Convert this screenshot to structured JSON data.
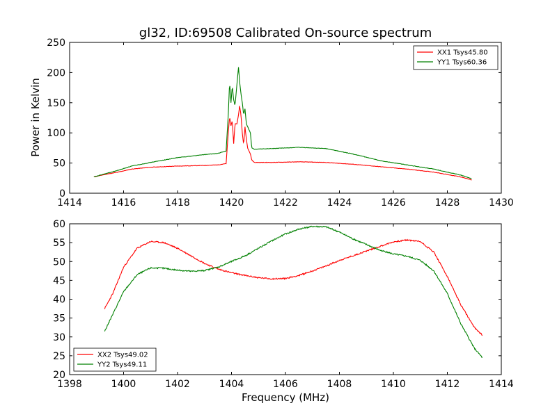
{
  "figure": {
    "title": "gl32, ID:69508 Calibrated On-source spectrum",
    "ylabel": "Power in Kelvin",
    "xlabel": "Frequency (MHz)"
  },
  "colors": {
    "red": "#ff0000",
    "green": "#008000"
  },
  "chart_data": [
    {
      "type": "line",
      "xlim": [
        1414,
        1430
      ],
      "ylim": [
        0,
        250
      ],
      "xticks": [
        1414,
        1416,
        1418,
        1420,
        1422,
        1424,
        1426,
        1428,
        1430
      ],
      "yticks": [
        0,
        50,
        100,
        150,
        200,
        250
      ],
      "legend": "top-right",
      "series": [
        {
          "name": "XX1 Tsys45.80",
          "color": "#ff0000",
          "x": [
            1414.9,
            1415.3,
            1415.8,
            1416.3,
            1417,
            1418,
            1419,
            1419.5,
            1419.8,
            1419.88,
            1419.93,
            1419.98,
            1420.03,
            1420.08,
            1420.13,
            1420.2,
            1420.26,
            1420.3,
            1420.35,
            1420.4,
            1420.45,
            1420.5,
            1420.55,
            1420.6,
            1420.65,
            1420.7,
            1420.75,
            1420.85,
            1421.5,
            1422.5,
            1423.5,
            1424.5,
            1425.5,
            1426.5,
            1427.5,
            1428.5,
            1428.9
          ],
          "y": [
            27,
            31,
            35,
            40,
            43,
            45,
            46,
            47,
            49,
            100,
            127,
            112,
            120,
            82,
            115,
            115,
            130,
            145,
            130,
            100,
            80,
            110,
            90,
            75,
            70,
            65,
            55,
            51,
            51,
            52,
            51,
            48,
            44,
            40,
            35,
            27,
            22
          ]
        },
        {
          "name": "YY1 Tsys60.36",
          "color": "#008000",
          "x": [
            1414.9,
            1415.3,
            1415.8,
            1416.3,
            1417,
            1418,
            1419,
            1419.5,
            1419.8,
            1419.88,
            1419.93,
            1419.98,
            1420.03,
            1420.08,
            1420.13,
            1420.2,
            1420.26,
            1420.3,
            1420.35,
            1420.4,
            1420.45,
            1420.5,
            1420.55,
            1420.6,
            1420.65,
            1420.7,
            1420.75,
            1420.85,
            1421.5,
            1422.5,
            1423.5,
            1424.5,
            1425.5,
            1426.5,
            1427.5,
            1428.5,
            1428.9
          ],
          "y": [
            27,
            32,
            38,
            45,
            51,
            59,
            64,
            66,
            70,
            130,
            185,
            150,
            178,
            155,
            145,
            180,
            209,
            185,
            165,
            150,
            130,
            140,
            115,
            110,
            105,
            100,
            75,
            73,
            74,
            76,
            74,
            65,
            54,
            47,
            40,
            30,
            24
          ]
        }
      ]
    },
    {
      "type": "line",
      "xlim": [
        1398,
        1414
      ],
      "ylim": [
        20,
        60
      ],
      "xticks": [
        1398,
        1400,
        1402,
        1404,
        1406,
        1408,
        1410,
        1412,
        1414
      ],
      "yticks": [
        20,
        25,
        30,
        35,
        40,
        45,
        50,
        55,
        60
      ],
      "legend": "bottom-left",
      "series": [
        {
          "name": "XX2 Tsys49.02",
          "color": "#ff0000",
          "x": [
            1399.3,
            1399.6,
            1400,
            1400.5,
            1401,
            1401.5,
            1402,
            1402.5,
            1403,
            1403.5,
            1404,
            1404.5,
            1405,
            1405.5,
            1406,
            1406.5,
            1407,
            1407.5,
            1408,
            1408.5,
            1409,
            1409.5,
            1410,
            1410.5,
            1411,
            1411.5,
            1412,
            1412.5,
            1413,
            1413.3
          ],
          "y": [
            37.5,
            41.5,
            48.5,
            53.5,
            55.3,
            55,
            53.5,
            51.5,
            49.5,
            48,
            47,
            46.3,
            45.7,
            45.4,
            45.5,
            46.3,
            47.5,
            48.8,
            50.3,
            51.5,
            52.8,
            54,
            55.2,
            55.7,
            55.3,
            52.5,
            46,
            38.5,
            32.5,
            30.5
          ]
        },
        {
          "name": "YY2 Tsys49.11",
          "color": "#008000",
          "x": [
            1399.3,
            1399.6,
            1400,
            1400.5,
            1401,
            1401.5,
            1402,
            1402.5,
            1403,
            1403.5,
            1404,
            1404.5,
            1405,
            1405.5,
            1406,
            1406.5,
            1407,
            1407.5,
            1408,
            1408.5,
            1409,
            1409.5,
            1410,
            1410.5,
            1411,
            1411.5,
            1412,
            1412.5,
            1413,
            1413.3
          ],
          "y": [
            31.5,
            36,
            42,
            46.5,
            48.3,
            48.2,
            47.7,
            47.4,
            47.6,
            48.5,
            50,
            51.5,
            53.5,
            55.5,
            57.3,
            58.6,
            59.3,
            59.2,
            57.8,
            56,
            54.5,
            53,
            52,
            51.4,
            50.3,
            47.5,
            41.5,
            33.5,
            27,
            24.5
          ]
        }
      ]
    }
  ]
}
